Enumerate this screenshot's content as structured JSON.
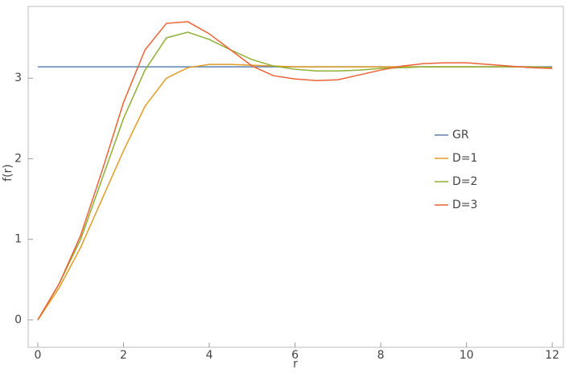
{
  "chart_data": {
    "type": "line",
    "x_label": "r",
    "y_label": "f(r)",
    "x": [
      0,
      0.5,
      1,
      1.5,
      2,
      2.5,
      3,
      3.5,
      4,
      4.5,
      5,
      5.5,
      6,
      6.5,
      7,
      7.5,
      8,
      8.5,
      9,
      9.5,
      10,
      10.5,
      11,
      11.5,
      12
    ],
    "series": [
      {
        "name": "GR",
        "color": "#5e81b5",
        "values": [
          3.14,
          3.14,
          3.14,
          3.14,
          3.14,
          3.14,
          3.14,
          3.14,
          3.14,
          3.14,
          3.14,
          3.14,
          3.14,
          3.14,
          3.14,
          3.14,
          3.14,
          3.14,
          3.14,
          3.14,
          3.14,
          3.14,
          3.14,
          3.14,
          3.14
        ]
      },
      {
        "name": "D=1",
        "color": "#e19c24",
        "values": [
          0,
          0.4,
          0.9,
          1.5,
          2.1,
          2.65,
          3.0,
          3.13,
          3.17,
          3.17,
          3.16,
          3.15,
          3.14,
          3.14,
          3.14,
          3.14,
          3.14,
          3.14,
          3.14,
          3.14,
          3.14,
          3.14,
          3.14,
          3.14,
          3.13
        ]
      },
      {
        "name": "D=2",
        "color": "#8fb032",
        "values": [
          0,
          0.45,
          1.0,
          1.75,
          2.5,
          3.1,
          3.5,
          3.57,
          3.48,
          3.35,
          3.23,
          3.15,
          3.11,
          3.09,
          3.09,
          3.1,
          3.12,
          3.13,
          3.14,
          3.14,
          3.14,
          3.14,
          3.14,
          3.14,
          3.13
        ]
      },
      {
        "name": "D=3",
        "color": "#eb6235",
        "values": [
          0,
          0.45,
          1.05,
          1.85,
          2.7,
          3.35,
          3.68,
          3.7,
          3.55,
          3.35,
          3.15,
          3.03,
          2.99,
          2.97,
          2.98,
          3.04,
          3.1,
          3.15,
          3.18,
          3.19,
          3.19,
          3.17,
          3.15,
          3.13,
          3.12
        ]
      }
    ],
    "xlim": [
      -0.225,
      12.26
    ],
    "ylim": [
      -0.34,
      3.89
    ],
    "xticks": [
      0,
      2,
      4,
      6,
      8,
      10,
      12
    ],
    "yticks": [
      0,
      1,
      2,
      3
    ],
    "legend_position": "right"
  }
}
